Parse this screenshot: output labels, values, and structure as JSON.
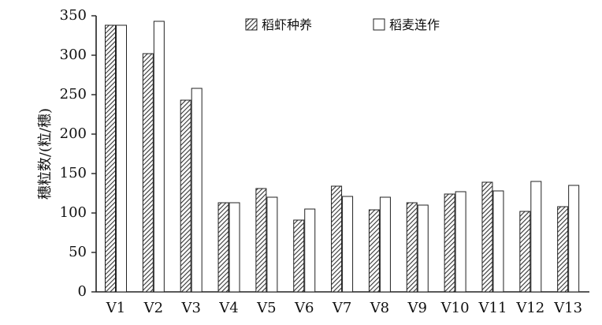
{
  "chart_data": {
    "type": "bar",
    "categories": [
      "V1",
      "V2",
      "V3",
      "V4",
      "V5",
      "V6",
      "V7",
      "V8",
      "V9",
      "V10",
      "V11",
      "V12",
      "V13"
    ],
    "series": [
      {
        "name": "稻虾种养",
        "pattern": "diagonal-hatch",
        "values": [
          338,
          302,
          243,
          113,
          131,
          91,
          134,
          104,
          113,
          124,
          139,
          102,
          108
        ]
      },
      {
        "name": "稻麦连作",
        "pattern": "white",
        "values": [
          338,
          343,
          258,
          113,
          120,
          105,
          121,
          120,
          110,
          127,
          128,
          140,
          135
        ]
      }
    ],
    "ylabel": "穗粒数/(粒/穗)",
    "xlabel": "",
    "ylim": [
      0,
      350
    ],
    "yticks": [
      0,
      50,
      100,
      150,
      200,
      250,
      300,
      350
    ],
    "grid": false,
    "legend": "top-center"
  }
}
